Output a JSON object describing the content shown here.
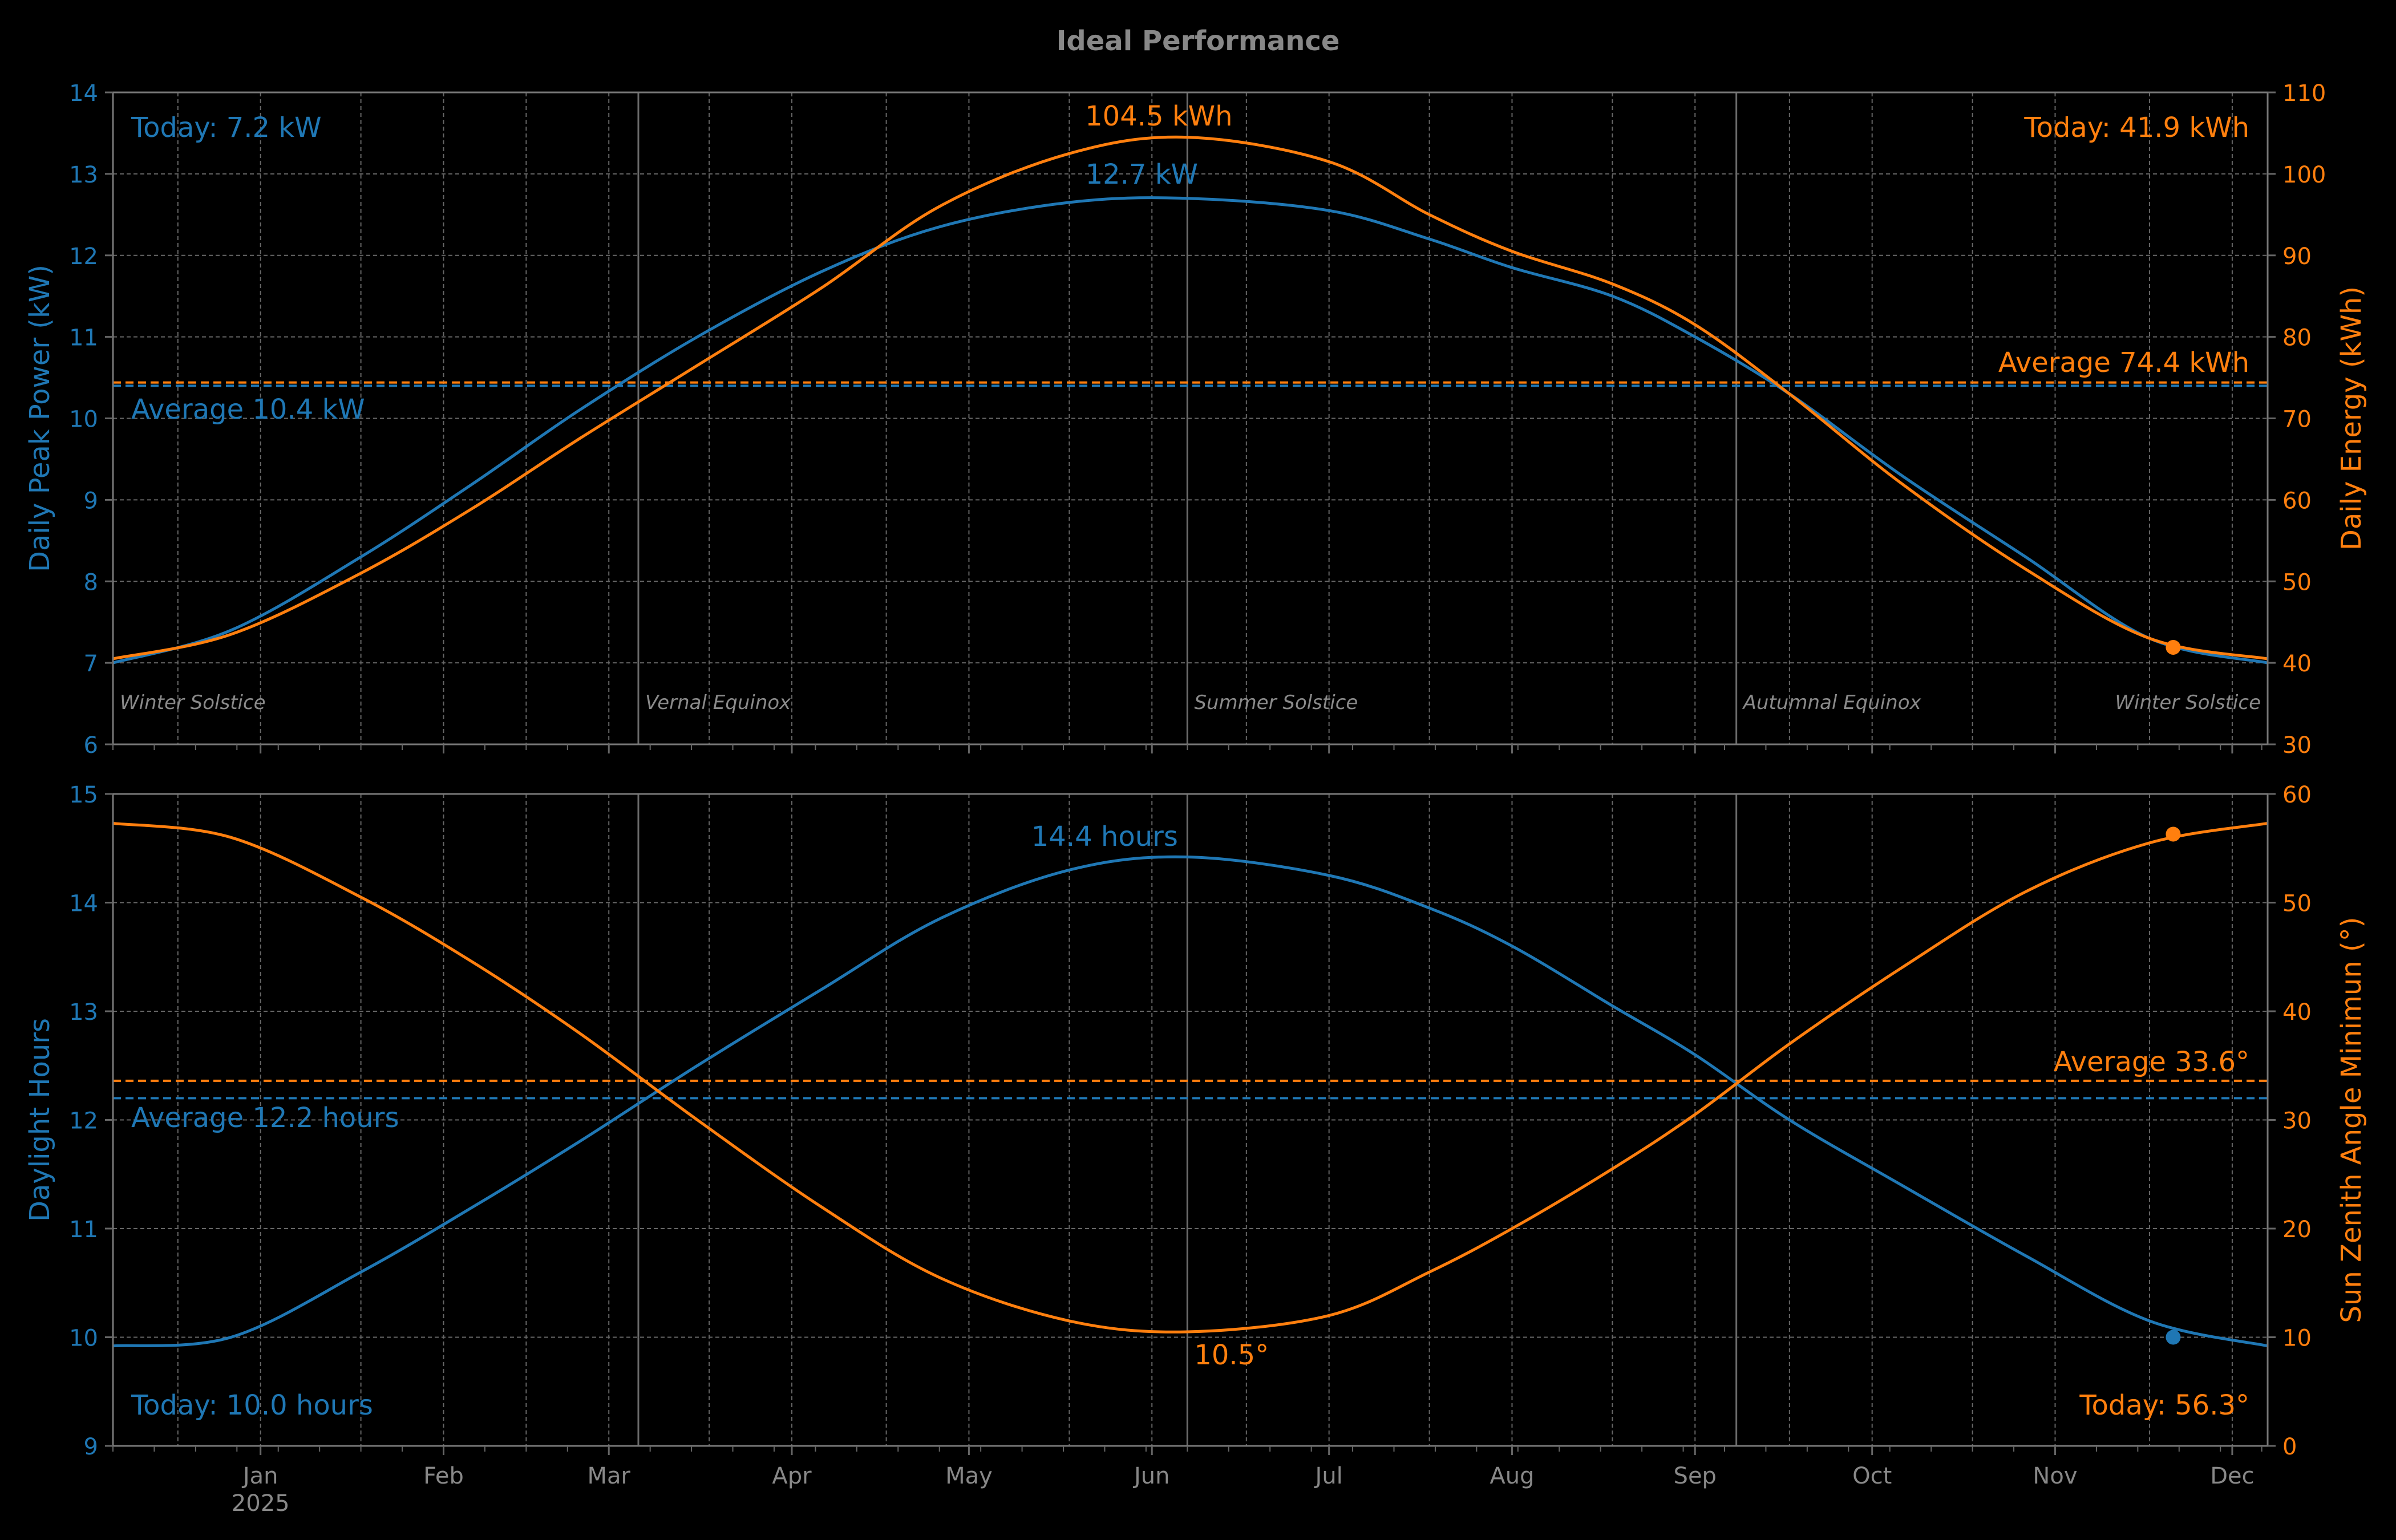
{
  "chart_data": {
    "title": "Ideal Performance",
    "type": "line",
    "months": [
      "Jan",
      "Feb",
      "Mar",
      "Apr",
      "May",
      "Jun",
      "Jul",
      "Aug",
      "Sep",
      "Oct",
      "Nov",
      "Dec"
    ],
    "year_label": "2025",
    "x_range": [
      "2024-12-21",
      "2025-12-21"
    ],
    "today": "2025-12-05",
    "events": [
      {
        "label": "Winter Solstice",
        "date": "2024-12-21"
      },
      {
        "label": "Vernal Equinox",
        "date": "2025-03-20"
      },
      {
        "label": "Summer Solstice",
        "date": "2025-06-21"
      },
      {
        "label": "Autumnal Equinox",
        "date": "2025-09-22"
      },
      {
        "label": "Winter Solstice",
        "date": "2025-12-21"
      }
    ],
    "panels": [
      {
        "left": {
          "label": "Daily Peak Power (kW)",
          "ylim": [
            6,
            14
          ],
          "ticks": [
            6,
            7,
            8,
            9,
            10,
            11,
            12,
            13,
            14
          ],
          "color": "#1f77b4",
          "series": {
            "dates": [
              "2024-12-21",
              "2025-01-10",
              "2025-02-01",
              "2025-02-20",
              "2025-03-10",
              "2025-03-30",
              "2025-04-20",
              "2025-05-10",
              "2025-06-01",
              "2025-06-21",
              "2025-07-15",
              "2025-08-01",
              "2025-08-15",
              "2025-09-01",
              "2025-09-15",
              "2025-10-01",
              "2025-10-20",
              "2025-11-10",
              "2025-12-01",
              "2025-12-21"
            ],
            "values": [
              7.0,
              7.4,
              8.3,
              9.2,
              10.1,
              11.0,
              11.8,
              12.35,
              12.65,
              12.7,
              12.55,
              12.2,
              11.85,
              11.5,
              11.0,
              10.3,
              9.3,
              8.3,
              7.3,
              7.0
            ]
          },
          "average": 10.4,
          "average_label": "Average 10.4 kW",
          "today_value": 7.2,
          "today_label": "Today: 7.2 kW",
          "peak_label": "12.7 kW"
        },
        "right": {
          "label": "Daily Energy (kWh)",
          "ylim": [
            30,
            110
          ],
          "ticks": [
            30,
            40,
            50,
            60,
            70,
            80,
            90,
            100,
            110
          ],
          "color": "#ff7f0e",
          "series": {
            "dates": [
              "2024-12-21",
              "2025-01-10",
              "2025-02-01",
              "2025-02-20",
              "2025-03-10",
              "2025-03-30",
              "2025-04-20",
              "2025-05-10",
              "2025-06-01",
              "2025-06-21",
              "2025-07-15",
              "2025-08-01",
              "2025-08-15",
              "2025-09-01",
              "2025-09-15",
              "2025-10-01",
              "2025-10-20",
              "2025-11-10",
              "2025-12-01",
              "2025-12-21"
            ],
            "values": [
              40.5,
              43.5,
              51,
              59,
              67.5,
              76.5,
              86,
              96,
              102.5,
              104.5,
              101.5,
              95,
              90.5,
              86.5,
              81.5,
              73,
              62,
              51.5,
              43,
              40.5
            ]
          },
          "average": 74.4,
          "average_label": "Average 74.4 kWh",
          "today_value": 41.9,
          "today_label": "Today: 41.9 kWh",
          "peak_label": "104.5 kWh"
        }
      },
      {
        "left": {
          "label": "Daylight Hours",
          "ylim": [
            9,
            15
          ],
          "ticks": [
            9,
            10,
            11,
            12,
            13,
            14,
            15
          ],
          "color": "#1f77b4",
          "series": {
            "dates": [
              "2024-12-21",
              "2025-01-10",
              "2025-02-01",
              "2025-02-20",
              "2025-03-10",
              "2025-03-30",
              "2025-04-20",
              "2025-05-10",
              "2025-06-01",
              "2025-06-21",
              "2025-07-15",
              "2025-08-01",
              "2025-08-15",
              "2025-09-01",
              "2025-09-15",
              "2025-10-01",
              "2025-10-20",
              "2025-11-10",
              "2025-12-01",
              "2025-12-21"
            ],
            "values": [
              9.92,
              10.0,
              10.6,
              11.2,
              11.8,
              12.5,
              13.2,
              13.85,
              14.3,
              14.42,
              14.25,
              13.95,
              13.6,
              13.05,
              12.6,
              12.0,
              11.4,
              10.75,
              10.15,
              9.92
            ]
          },
          "average": 12.2,
          "average_label": "Average 12.2 hours",
          "today_value": 10.0,
          "today_label": "Today: 10.0 hours",
          "peak_label": "14.4 hours"
        },
        "right": {
          "label": "Sun Zenith Angle Minimun (°)",
          "ylim": [
            0,
            60
          ],
          "ticks": [
            0,
            10,
            20,
            30,
            40,
            50,
            60
          ],
          "color": "#ff7f0e",
          "series": {
            "dates": [
              "2024-12-21",
              "2025-01-10",
              "2025-02-01",
              "2025-02-20",
              "2025-03-10",
              "2025-03-30",
              "2025-04-20",
              "2025-05-10",
              "2025-06-01",
              "2025-06-21",
              "2025-07-15",
              "2025-08-01",
              "2025-08-15",
              "2025-09-01",
              "2025-09-15",
              "2025-10-01",
              "2025-10-20",
              "2025-11-10",
              "2025-12-01",
              "2025-12-21"
            ],
            "values": [
              57.3,
              56.0,
              50.5,
              44.5,
              38.0,
              30.0,
              22.0,
              15.5,
              11.5,
              10.5,
              12.0,
              16.0,
              20.0,
              25.5,
              30.5,
              37.0,
              44.0,
              51.0,
              55.5,
              57.3
            ]
          },
          "average": 33.6,
          "average_label": "Average 33.6°",
          "today_value": 56.3,
          "today_label": "Today: 56.3°",
          "min_label": "10.5°"
        }
      }
    ]
  }
}
